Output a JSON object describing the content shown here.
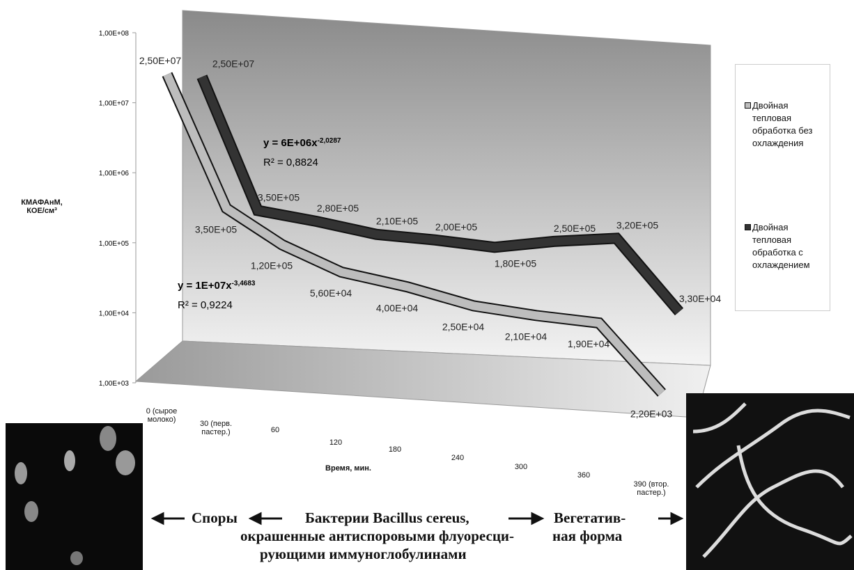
{
  "chart_data": {
    "type": "line",
    "y_scale": "log",
    "y_label": "КМАФАнМ, КОЕ/см³",
    "x_label": "Время, мин.",
    "categories": [
      "0 (сырое молоко)",
      "30 (перв. пастер.)",
      "60",
      "120",
      "180",
      "240",
      "300",
      "360",
      "390 (втор. пастер.)"
    ],
    "ylim": [
      1000,
      100000000
    ],
    "yticks": [
      {
        "value": 1000,
        "label": "1,00E+03"
      },
      {
        "value": 10000,
        "label": "1,00E+04"
      },
      {
        "value": 100000,
        "label": "1,00E+05"
      },
      {
        "value": 1000000,
        "label": "1,00E+06"
      },
      {
        "value": 10000000,
        "label": "1,00E+07"
      },
      {
        "value": 100000000,
        "label": "1,00E+08"
      }
    ],
    "grid": false,
    "legend": "right",
    "series": [
      {
        "name": "Двойная тепловая обработка без охлаждения",
        "color": "#bdbdbd",
        "values": [
          25000000,
          350000,
          120000,
          56000,
          40000,
          25000,
          21000,
          19000,
          2200
        ],
        "value_labels": [
          "2,50E+07",
          "3,50E+05",
          "1,20E+05",
          "5,60E+04",
          "4,00E+04",
          "2,50E+04",
          "2,10E+04",
          "1,90E+04",
          "2,20E+03"
        ],
        "trendline": {
          "equation": "y = 1E+07x",
          "exponent": "-3,4683",
          "r2": "R² = 0,9224"
        }
      },
      {
        "name": "Двойная тепловая обработка с охлаждением",
        "color": "#333333",
        "values": [
          25000000,
          350000,
          280000,
          210000,
          200000,
          180000,
          250000,
          320000,
          33000
        ],
        "value_labels": [
          "2,50E+07",
          "3,50E+05",
          "2,80E+05",
          "2,10E+05",
          "2,00E+05",
          "1,80E+05",
          "2,50E+05",
          "3,20E+05",
          "3,30E+04"
        ],
        "trendline": {
          "equation": "y = 6E+06x",
          "exponent": "-2,0287",
          "r2": "R² = 0,8824"
        }
      }
    ]
  },
  "caption": {
    "spores": "Споры",
    "bacteria": "Бактерии Bacillus cereus,",
    "line2": "окрашенные антиспоровыми флуоресци-",
    "line3": "рующими иммуноглобулинами",
    "vegetative": "Вегетатив-",
    "vegetative2": "ная форма"
  }
}
